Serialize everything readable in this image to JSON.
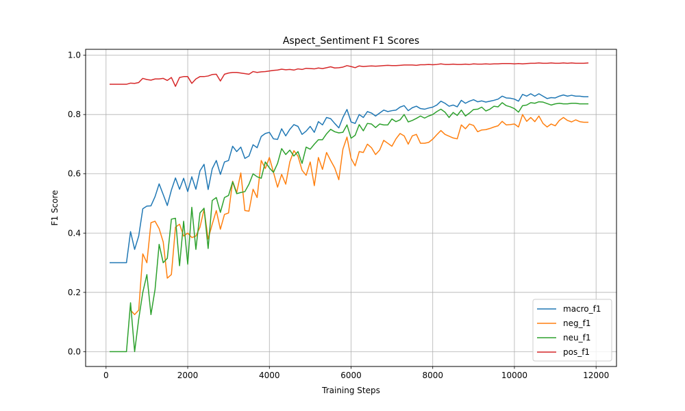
{
  "chart_data": {
    "type": "line",
    "title": "Aspect_Sentiment F1 Scores",
    "xlabel": "Training Steps",
    "ylabel": "F1 Score",
    "xlim": [
      -500,
      12500
    ],
    "ylim": [
      -0.05,
      1.02
    ],
    "xticks": [
      0,
      2000,
      4000,
      6000,
      8000,
      10000,
      12000
    ],
    "xtick_labels": [
      "0",
      "2000",
      "4000",
      "6000",
      "8000",
      "10000",
      "12000"
    ],
    "yticks": [
      0.0,
      0.2,
      0.4,
      0.6,
      0.8,
      1.0
    ],
    "ytick_labels": [
      "0.0",
      "0.2",
      "0.4",
      "0.6",
      "0.8",
      "1.0"
    ],
    "grid": true,
    "legend_position": "lower-right",
    "x": [
      100,
      200,
      300,
      400,
      500,
      600,
      700,
      800,
      900,
      1000,
      1100,
      1200,
      1300,
      1400,
      1500,
      1600,
      1700,
      1800,
      1900,
      2000,
      2100,
      2200,
      2300,
      2400,
      2500,
      2600,
      2700,
      2800,
      2900,
      3000,
      3100,
      3200,
      3300,
      3400,
      3500,
      3600,
      3700,
      3800,
      3900,
      4000,
      4100,
      4200,
      4300,
      4400,
      4500,
      4600,
      4700,
      4800,
      4900,
      5000,
      5100,
      5200,
      5300,
      5400,
      5500,
      5600,
      5700,
      5800,
      5900,
      6000,
      6100,
      6200,
      6300,
      6400,
      6500,
      6600,
      6700,
      6800,
      6900,
      7000,
      7100,
      7200,
      7300,
      7400,
      7500,
      7600,
      7700,
      7800,
      7900,
      8000,
      8100,
      8200,
      8300,
      8400,
      8500,
      8600,
      8700,
      8800,
      8900,
      9000,
      9100,
      9200,
      9300,
      9400,
      9500,
      9600,
      9700,
      9800,
      9900,
      10000,
      10100,
      10200,
      10300,
      10400,
      10500,
      10600,
      10700,
      10800,
      10900,
      11000,
      11100,
      11200,
      11300,
      11400,
      11500,
      11600,
      11700,
      11800
    ],
    "series": [
      {
        "name": "macro_f1",
        "color": "#1f77b4",
        "values": [
          0.3,
          0.3,
          0.3,
          0.3,
          0.3,
          0.405,
          0.345,
          0.39,
          0.482,
          0.491,
          0.492,
          0.523,
          0.566,
          0.53,
          0.493,
          0.545,
          0.586,
          0.548,
          0.585,
          0.54,
          0.59,
          0.548,
          0.61,
          0.632,
          0.547,
          0.617,
          0.645,
          0.598,
          0.64,
          0.645,
          0.693,
          0.675,
          0.69,
          0.652,
          0.66,
          0.698,
          0.688,
          0.726,
          0.736,
          0.74,
          0.718,
          0.716,
          0.752,
          0.728,
          0.75,
          0.766,
          0.76,
          0.733,
          0.744,
          0.76,
          0.74,
          0.776,
          0.765,
          0.79,
          0.786,
          0.77,
          0.755,
          0.79,
          0.817,
          0.775,
          0.77,
          0.8,
          0.79,
          0.81,
          0.805,
          0.795,
          0.805,
          0.815,
          0.81,
          0.813,
          0.815,
          0.825,
          0.83,
          0.813,
          0.823,
          0.828,
          0.82,
          0.818,
          0.822,
          0.825,
          0.832,
          0.845,
          0.838,
          0.828,
          0.832,
          0.826,
          0.848,
          0.838,
          0.845,
          0.85,
          0.843,
          0.846,
          0.842,
          0.845,
          0.848,
          0.852,
          0.862,
          0.856,
          0.855,
          0.852,
          0.845,
          0.868,
          0.862,
          0.87,
          0.862,
          0.87,
          0.862,
          0.854,
          0.857,
          0.856,
          0.862,
          0.866,
          0.862,
          0.865,
          0.862,
          0.862,
          0.86,
          0.86
        ]
      },
      {
        "name": "neg_f1",
        "color": "#ff7f0e",
        "values": [
          null,
          null,
          null,
          null,
          null,
          0.14,
          0.125,
          0.14,
          0.33,
          0.3,
          0.435,
          0.44,
          0.415,
          0.37,
          0.248,
          0.26,
          0.42,
          0.43,
          0.39,
          0.4,
          0.385,
          0.39,
          0.42,
          0.48,
          0.38,
          0.43,
          0.476,
          0.413,
          0.463,
          0.468,
          0.575,
          0.537,
          0.603,
          0.476,
          0.474,
          0.548,
          0.52,
          0.645,
          0.618,
          0.655,
          0.605,
          0.555,
          0.598,
          0.565,
          0.64,
          0.678,
          0.66,
          0.612,
          0.595,
          0.64,
          0.56,
          0.655,
          0.615,
          0.672,
          0.645,
          0.62,
          0.58,
          0.683,
          0.724,
          0.652,
          0.627,
          0.675,
          0.672,
          0.7,
          0.688,
          0.665,
          0.68,
          0.713,
          0.703,
          0.693,
          0.718,
          0.736,
          0.728,
          0.7,
          0.728,
          0.733,
          0.703,
          0.703,
          0.706,
          0.717,
          0.732,
          0.746,
          0.733,
          0.727,
          0.721,
          0.718,
          0.765,
          0.752,
          0.768,
          0.763,
          0.742,
          0.748,
          0.749,
          0.753,
          0.758,
          0.762,
          0.777,
          0.765,
          0.766,
          0.768,
          0.758,
          0.8,
          0.777,
          0.79,
          0.776,
          0.795,
          0.77,
          0.758,
          0.768,
          0.762,
          0.78,
          0.79,
          0.78,
          0.775,
          0.782,
          0.776,
          0.774,
          0.774
        ]
      },
      {
        "name": "neu_f1",
        "color": "#2ca02c",
        "values": [
          0.0,
          0.0,
          0.0,
          0.0,
          0.0,
          0.165,
          0.0,
          0.11,
          0.2,
          0.26,
          0.125,
          0.21,
          0.362,
          0.3,
          0.315,
          0.447,
          0.45,
          0.29,
          0.44,
          0.295,
          0.487,
          0.345,
          0.468,
          0.484,
          0.348,
          0.51,
          0.52,
          0.47,
          0.52,
          0.527,
          0.573,
          0.533,
          0.537,
          0.54,
          0.565,
          0.6,
          0.59,
          0.585,
          0.64,
          0.62,
          0.605,
          0.635,
          0.685,
          0.665,
          0.68,
          0.66,
          0.675,
          0.635,
          0.69,
          0.683,
          0.7,
          0.715,
          0.715,
          0.735,
          0.75,
          0.742,
          0.738,
          0.74,
          0.765,
          0.72,
          0.73,
          0.766,
          0.745,
          0.77,
          0.768,
          0.756,
          0.768,
          0.765,
          0.765,
          0.785,
          0.776,
          0.782,
          0.8,
          0.775,
          0.78,
          0.787,
          0.795,
          0.788,
          0.795,
          0.8,
          0.81,
          0.818,
          0.808,
          0.79,
          0.807,
          0.797,
          0.815,
          0.795,
          0.805,
          0.817,
          0.818,
          0.825,
          0.812,
          0.818,
          0.828,
          0.826,
          0.84,
          0.83,
          0.826,
          0.82,
          0.808,
          0.83,
          0.832,
          0.84,
          0.838,
          0.843,
          0.842,
          0.837,
          0.832,
          0.836,
          0.838,
          0.836,
          0.836,
          0.838,
          0.838,
          0.836,
          0.836,
          0.836
        ]
      },
      {
        "name": "pos_f1",
        "color": "#d62728",
        "values": [
          0.902,
          0.902,
          0.902,
          0.902,
          0.902,
          0.906,
          0.905,
          0.908,
          0.922,
          0.918,
          0.916,
          0.92,
          0.92,
          0.922,
          0.915,
          0.925,
          0.895,
          0.925,
          0.928,
          0.928,
          0.905,
          0.92,
          0.928,
          0.928,
          0.93,
          0.935,
          0.936,
          0.913,
          0.936,
          0.94,
          0.942,
          0.942,
          0.94,
          0.938,
          0.936,
          0.945,
          0.942,
          0.944,
          0.945,
          0.947,
          0.949,
          0.95,
          0.953,
          0.951,
          0.952,
          0.95,
          0.954,
          0.952,
          0.956,
          0.955,
          0.954,
          0.957,
          0.955,
          0.958,
          0.961,
          0.957,
          0.958,
          0.96,
          0.965,
          0.962,
          0.958,
          0.964,
          0.962,
          0.963,
          0.964,
          0.963,
          0.964,
          0.965,
          0.966,
          0.965,
          0.965,
          0.966,
          0.967,
          0.967,
          0.967,
          0.966,
          0.968,
          0.968,
          0.969,
          0.968,
          0.969,
          0.971,
          0.969,
          0.969,
          0.97,
          0.969,
          0.969,
          0.97,
          0.969,
          0.971,
          0.97,
          0.97,
          0.971,
          0.97,
          0.971,
          0.971,
          0.972,
          0.972,
          0.972,
          0.971,
          0.972,
          0.971,
          0.972,
          0.973,
          0.973,
          0.974,
          0.973,
          0.973,
          0.974,
          0.973,
          0.973,
          0.974,
          0.973,
          0.974,
          0.973,
          0.973,
          0.973,
          0.974
        ]
      }
    ]
  }
}
